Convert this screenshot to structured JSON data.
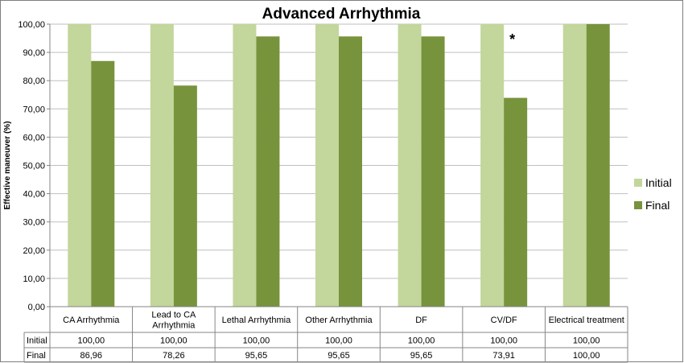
{
  "chart_data": {
    "type": "bar",
    "title": "Advanced Arrhythmia",
    "ylabel": "Effective maneuver (%)",
    "xlabel": "",
    "ylim": [
      0,
      100
    ],
    "yticks": [
      "0,00",
      "10,00",
      "20,00",
      "30,00",
      "40,00",
      "50,00",
      "60,00",
      "70,00",
      "80,00",
      "90,00",
      "100,00"
    ],
    "grid": true,
    "legend_position": "right",
    "categories": [
      [
        "CA Arrhythmia"
      ],
      [
        "Lead to CA",
        "Arrhythmia"
      ],
      [
        "Lethal Arrhythmia"
      ],
      [
        "Other Arrhythmia"
      ],
      [
        "DF"
      ],
      [
        "CV/DF"
      ],
      [
        "Electrical treatment"
      ]
    ],
    "series": [
      {
        "name": "Initial",
        "color": "#c3d69b",
        "values": [
          100,
          100,
          100,
          100,
          100,
          100,
          100
        ],
        "labels": [
          "100,00",
          "100,00",
          "100,00",
          "100,00",
          "100,00",
          "100,00",
          "100,00"
        ]
      },
      {
        "name": "Final",
        "color": "#77933c",
        "values": [
          86.96,
          78.26,
          95.65,
          95.65,
          95.65,
          73.91,
          100
        ],
        "labels": [
          "86,96",
          "78,26",
          "95,65",
          "95,65",
          "95,65",
          "73,91",
          "100,00"
        ]
      }
    ],
    "annotations": [
      {
        "text": "*",
        "category_index": 5
      }
    ]
  }
}
